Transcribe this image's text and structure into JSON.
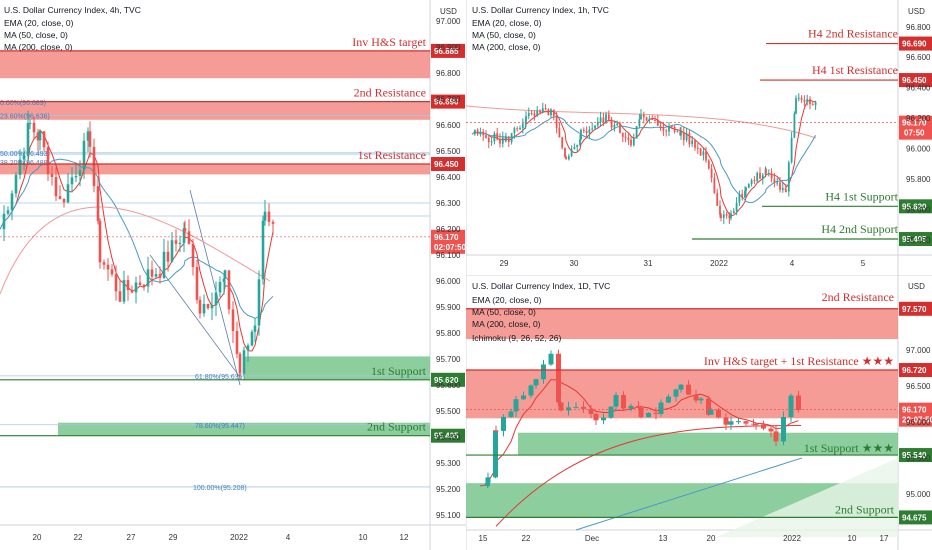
{
  "colors": {
    "resistance": "#d32f2f",
    "resistance_zone": "#f28b82",
    "support": "#2e7d32",
    "support_zone": "#81c995",
    "ema": "#e53935",
    "ma50": "#4a9ac4",
    "ma200": "#ef9a9a",
    "bull": "#26a69a",
    "bear": "#ef5350"
  },
  "chart_data": [
    {
      "id": "h4",
      "type": "candlestick",
      "title": "U.S. Dollar Currency Index, 4h, TVC",
      "indicators": [
        "EMA (20, close, 0)",
        "MA (50, close, 0)",
        "MA (200, close, 0)"
      ],
      "currency": "USD",
      "ylim": [
        95.05,
        97.05
      ],
      "y_ticks": [
        "97.000",
        "96.900",
        "96.800",
        "96.700",
        "96.600",
        "96.500",
        "96.400",
        "96.300",
        "96.200",
        "96.100",
        "96.000",
        "95.900",
        "95.800",
        "95.700",
        "95.600",
        "95.500",
        "95.400",
        "95.300",
        "95.200",
        "95.100"
      ],
      "x_ticks": [
        "20",
        "22",
        "27",
        "29",
        "2022",
        "4",
        "10",
        "12"
      ],
      "levels": [
        {
          "name": "Inv H&S target",
          "value": 96.885,
          "tag": "96.885",
          "kind": "res"
        },
        {
          "name": "2nd Resistance",
          "value": 96.69,
          "tag": "96.690",
          "kind": "res"
        },
        {
          "name": "1st Resistance",
          "value": 96.45,
          "tag": "96.450",
          "kind": "res"
        },
        {
          "name": "1st Support",
          "value": 95.62,
          "tag": "95.620",
          "kind": "sup"
        },
        {
          "name": "2nd Support",
          "value": 95.405,
          "tag": "95.405",
          "kind": "sup"
        }
      ],
      "fib_labels": [
        "0.00%(96.689)",
        "23.60%(96.636)",
        "50.00%(96.493)",
        "38.20%(96.488)",
        "61.80%(95.635)",
        "78.60%(95.447)",
        "100.00%(95.208)"
      ],
      "last_price": "96.170",
      "countdown": "02:07:50"
    },
    {
      "id": "h1",
      "type": "candlestick",
      "title": "U.S. Dollar Currency Index, 1h, TVC",
      "indicators": [
        "EMA (20, close, 0)",
        "MA (50, close, 0)",
        "MA (200, close, 0)"
      ],
      "currency": "USD",
      "ylim": [
        95.3,
        96.95
      ],
      "y_ticks": [
        "96.800",
        "96.600",
        "96.400",
        "96.200",
        "96.000",
        "95.800",
        "95.600",
        "95.400"
      ],
      "x_ticks": [
        "29",
        "30",
        "31",
        "2022",
        "4",
        "5"
      ],
      "levels": [
        {
          "name": "H4 2nd Resistance",
          "value": 96.69,
          "tag": "96.690",
          "kind": "res"
        },
        {
          "name": "H4 1st Resistance",
          "value": 96.45,
          "tag": "96.450",
          "kind": "res"
        },
        {
          "name": "H4 1st Support",
          "value": 95.62,
          "tag": "95.620",
          "kind": "sup"
        },
        {
          "name": "H4 2nd Support",
          "value": 95.405,
          "tag": "95.405",
          "kind": "sup"
        }
      ],
      "last_price": "96.170",
      "countdown": "07:50"
    },
    {
      "id": "d1",
      "type": "candlestick",
      "title": "U.S. Dollar Currency Index, 1D, TVC",
      "indicators": [
        "EMA (20, close, 0)",
        "MA (50, close, 0)",
        "MA (200, close, 0)",
        "Ichimoku (9, 26, 52, 26)"
      ],
      "currency": "USD",
      "ylim": [
        94.5,
        97.9
      ],
      "y_ticks": [
        "97.000",
        "96.500",
        "96.000",
        "95.500",
        "95.000"
      ],
      "x_ticks": [
        "15",
        "22",
        "Dec",
        "13",
        "20",
        "2022",
        "10",
        "17"
      ],
      "levels": [
        {
          "name": "2nd Resistance",
          "value": 97.57,
          "tag": "97.570",
          "kind": "res"
        },
        {
          "name": "Inv H&S target + 1st Resistance ★★★",
          "value": 96.72,
          "tag": "96.720",
          "kind": "res"
        },
        {
          "name": "1st Support ★★★",
          "value": 95.54,
          "tag": "95.540",
          "kind": "sup"
        },
        {
          "name": "2nd Support",
          "value": 94.675,
          "tag": "94.675",
          "kind": "sup"
        }
      ],
      "last_price": "96.170",
      "countdown": "22:07:50"
    }
  ]
}
